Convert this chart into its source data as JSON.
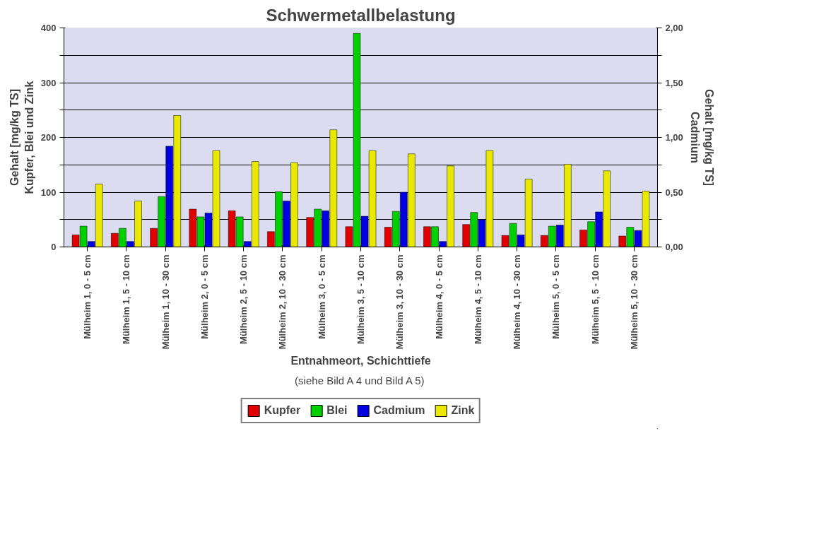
{
  "chart_data": {
    "type": "bar",
    "title": "Schwermetallbelastung",
    "xlabel": "Entnahmeort, Schichttiefe",
    "ylabel": "Gehalt [mg/kg TS]\nKupfer, Blei und Zink",
    "y2label": "Gehalt [mg/kg TS]\nCadmium",
    "annotations": [
      "(siehe Bild A 4 und Bild A 5)"
    ],
    "categories": [
      "Mülheim 1, 0 - 5 cm",
      "Mülheim 1, 5 - 10 cm",
      "Mülheim 1, 10 - 30 cm",
      "Mülheim 2, 0 - 5 cm",
      "Mülheim 2, 5 - 10 cm",
      "Mülheim 2, 10 - 30 cm",
      "Mülheim 3, 0 - 5 cm",
      "Mülheim 3, 5 - 10 cm",
      "Mülheim 3, 10 - 30 cm",
      "Mülheim 4, 0 - 5 cm",
      "Mülheim 4, 5 - 10 cm",
      "Mülheim 4, 10 - 30 cm",
      "Mülheim 5, 0 - 5 cm",
      "Mülheim 5, 5 - 10 cm",
      "Mülheim 5, 10 - 30 cm"
    ],
    "series": [
      {
        "name": "Kupfer",
        "color": "#e00000",
        "values": [
          22,
          25,
          34,
          69,
          66,
          28,
          54,
          37,
          36,
          37,
          41,
          21,
          21,
          31,
          20
        ]
      },
      {
        "name": "Blei",
        "color": "#00d000",
        "values": [
          38,
          34,
          92,
          55,
          55,
          101,
          69,
          390,
          65,
          37,
          63,
          43,
          38,
          46,
          36
        ]
      },
      {
        "name": "Cadmium",
        "color": "#0000e0",
        "axis": "y2",
        "values": [
          0.05,
          0.05,
          0.92,
          0.31,
          0.05,
          0.42,
          0.33,
          0.28,
          0.5,
          0.05,
          0.25,
          0.11,
          0.2,
          0.32,
          0.15
        ]
      },
      {
        "name": "Zink",
        "color": "#e8e800",
        "values": [
          115,
          84,
          240,
          176,
          156,
          154,
          214,
          176,
          170,
          148,
          176,
          124,
          151,
          139,
          102
        ]
      }
    ],
    "ylim": [
      0,
      400
    ],
    "yticks": [
      0,
      {
        "value": 50,
        "label": null
      },
      100,
      {
        "value": 150,
        "label": null
      },
      200,
      {
        "value": 250,
        "label": null
      },
      300,
      {
        "value": 350,
        "label": null
      },
      400
    ],
    "y2lim": [
      0,
      2
    ],
    "y2ticks": [
      {
        "value": 0,
        "label": "0,00"
      },
      {
        "value": 0.25,
        "label": null
      },
      {
        "value": 0.5,
        "label": "0,50"
      },
      {
        "value": 0.75,
        "label": null
      },
      {
        "value": 1,
        "label": "1,00"
      },
      {
        "value": 1.25,
        "label": null
      },
      {
        "value": 1.5,
        "label": "1,50"
      },
      {
        "value": 1.75,
        "label": null
      },
      {
        "value": 2,
        "label": "2,00"
      }
    ],
    "grid": "y",
    "legend": "bottom"
  }
}
